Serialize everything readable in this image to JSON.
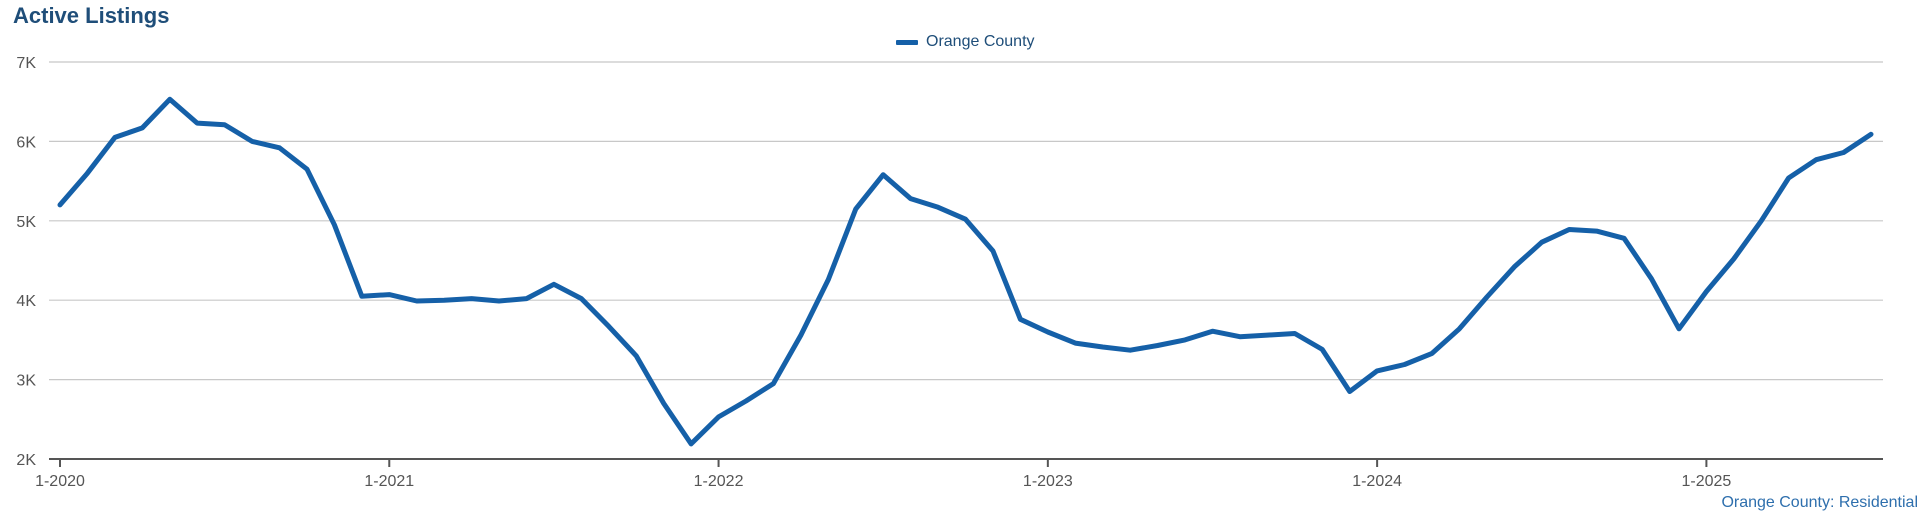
{
  "title": "Active Listings",
  "legend": {
    "label": "Orange County"
  },
  "source_label": "Orange County: Residential",
  "colors": {
    "series": "#1560a8",
    "title": "#1f4e79",
    "grid": "#c8c8c8",
    "axis": "#555555"
  },
  "chart_data": {
    "type": "line",
    "title": "Active Listings",
    "xlabel": "",
    "ylabel": "",
    "ylim": [
      2000,
      7000
    ],
    "yticks": [
      2000,
      3000,
      4000,
      5000,
      6000,
      7000
    ],
    "ytick_labels": [
      "2K",
      "3K",
      "4K",
      "5K",
      "6K",
      "7K"
    ],
    "xtick_labels": [
      "1-2020",
      "1-2021",
      "1-2022",
      "1-2023",
      "1-2024",
      "1-2025"
    ],
    "xtick_dates": [
      "2020-01",
      "2021-01",
      "2022-01",
      "2023-01",
      "2024-01",
      "2025-01"
    ],
    "grid": true,
    "legend_position": "top-center",
    "series": [
      {
        "name": "Orange County",
        "x": [
          "2020-01",
          "2020-02",
          "2020-03",
          "2020-04",
          "2020-05",
          "2020-06",
          "2020-07",
          "2020-08",
          "2020-09",
          "2020-10",
          "2020-11",
          "2020-12",
          "2021-01",
          "2021-02",
          "2021-03",
          "2021-04",
          "2021-05",
          "2021-06",
          "2021-07",
          "2021-08",
          "2021-09",
          "2021-10",
          "2021-11",
          "2021-12",
          "2022-01",
          "2022-02",
          "2022-03",
          "2022-04",
          "2022-05",
          "2022-06",
          "2022-07",
          "2022-08",
          "2022-09",
          "2022-10",
          "2022-11",
          "2022-12",
          "2023-01",
          "2023-02",
          "2023-03",
          "2023-04",
          "2023-05",
          "2023-06",
          "2023-07",
          "2023-08",
          "2023-09",
          "2023-10",
          "2023-11",
          "2023-12",
          "2024-01",
          "2024-02",
          "2024-03",
          "2024-04",
          "2024-05",
          "2024-06",
          "2024-07",
          "2024-08",
          "2024-09",
          "2024-10",
          "2024-11",
          "2024-12",
          "2025-01",
          "2025-02",
          "2025-03",
          "2025-04",
          "2025-05",
          "2025-06",
          "2025-07"
        ],
        "values": [
          5200,
          5600,
          6050,
          6170,
          6530,
          6230,
          6210,
          6000,
          5920,
          5650,
          4950,
          4050,
          4070,
          3990,
          4000,
          4020,
          3990,
          4020,
          4200,
          4020,
          3670,
          3300,
          2700,
          2190,
          2530,
          2730,
          2950,
          3560,
          4260,
          5150,
          5580,
          5280,
          5170,
          5020,
          4620,
          3760,
          3600,
          3460,
          3410,
          3370,
          3430,
          3500,
          3610,
          3540,
          3560,
          3580,
          3380,
          2850,
          3110,
          3190,
          3330,
          3640,
          4040,
          4420,
          4730,
          4890,
          4870,
          4780,
          4270,
          3640,
          4110,
          4520,
          5000,
          5540,
          5770,
          5860,
          6090
        ]
      }
    ]
  }
}
